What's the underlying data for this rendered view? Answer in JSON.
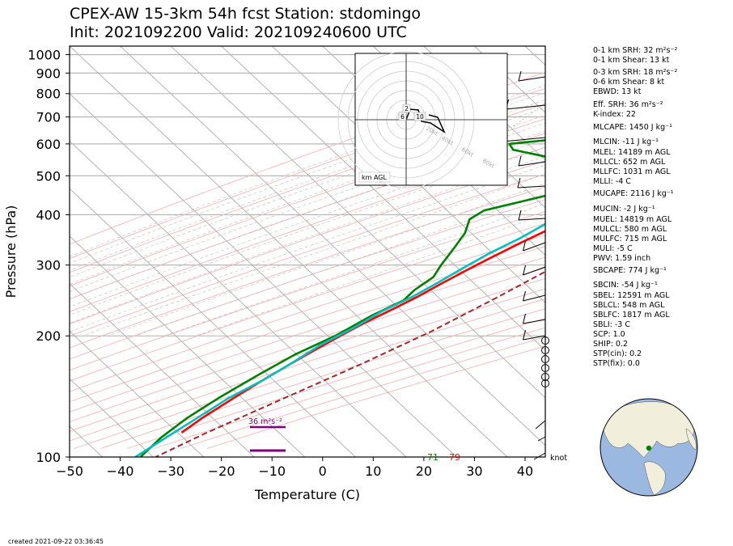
{
  "header": {
    "title_line1": "CPEX-AW 15-3km  54h fcst  Station: stdomingo",
    "title_line2": "Init: 2021092200  Valid: 202109240600 UTC"
  },
  "footer": {
    "created": "created 2021-09-22 03:36:45"
  },
  "chart_data": {
    "type": "skew-t",
    "xlabel": "Temperature (C)",
    "ylabel": "Pressure (hPa)",
    "xlim": [
      -50,
      44
    ],
    "ylim": [
      1050,
      100
    ],
    "y_scale": "log",
    "x_ticks": [
      -50,
      -40,
      -30,
      -20,
      -10,
      0,
      10,
      20,
      30,
      40
    ],
    "y_ticks": [
      100,
      200,
      300,
      400,
      500,
      600,
      700,
      800,
      900,
      1000
    ],
    "grid": true,
    "series": [
      {
        "key": "temperature",
        "color": "#ff0000",
        "points": [
          [
            27,
            1000
          ],
          [
            25,
            960
          ],
          [
            23,
            920
          ],
          [
            22.5,
            880
          ],
          [
            21,
            830
          ],
          [
            19,
            780
          ],
          [
            17.5,
            730
          ],
          [
            17,
            700
          ],
          [
            15.5,
            660
          ],
          [
            14,
            630
          ],
          [
            13,
            600
          ],
          [
            11,
            560
          ],
          [
            9,
            520
          ],
          [
            6,
            490
          ],
          [
            4,
            460
          ],
          [
            3,
            430
          ],
          [
            0,
            400
          ],
          [
            -3,
            370
          ],
          [
            -6,
            340
          ],
          [
            -9,
            310
          ],
          [
            -11,
            290
          ],
          [
            -13,
            270
          ],
          [
            -15,
            250
          ],
          [
            -17,
            235
          ],
          [
            -20,
            215
          ],
          [
            -22,
            200
          ],
          [
            -24,
            185
          ],
          [
            -26,
            170
          ],
          [
            -28,
            155
          ],
          [
            -30,
            140
          ],
          [
            -32,
            125
          ],
          [
            -33,
            115
          ]
        ]
      },
      {
        "key": "dewpoint",
        "color": "#008000",
        "points": [
          [
            22.5,
            1000
          ],
          [
            23,
            990
          ],
          [
            23.5,
            970
          ],
          [
            22,
            930
          ],
          [
            20,
            900
          ],
          [
            17,
            860
          ],
          [
            14,
            820
          ],
          [
            10,
            780
          ],
          [
            8,
            740
          ],
          [
            -20,
            670
          ],
          [
            -9,
            640
          ],
          [
            -29,
            600
          ],
          [
            -27,
            580
          ],
          [
            -1,
            510
          ],
          [
            -3,
            480
          ],
          [
            -20,
            410
          ],
          [
            -21,
            390
          ],
          [
            -19,
            360
          ],
          [
            -18,
            330
          ],
          [
            -17,
            300
          ],
          [
            -16,
            280
          ],
          [
            -17,
            260
          ],
          [
            -17,
            245
          ],
          [
            -20,
            225
          ],
          [
            -23,
            200
          ],
          [
            -27,
            180
          ],
          [
            -30,
            160
          ],
          [
            -33,
            140
          ],
          [
            -35,
            125
          ],
          [
            -36,
            112
          ],
          [
            -36,
            100
          ]
        ]
      },
      {
        "key": "wetbulb",
        "color": "#00c0c0",
        "points": [
          [
            24,
            1000
          ],
          [
            24,
            980
          ],
          [
            23.5,
            960
          ],
          [
            22,
            930
          ],
          [
            19,
            890
          ],
          [
            17,
            850
          ],
          [
            15,
            820
          ],
          [
            13,
            790
          ],
          [
            11,
            760
          ],
          [
            9,
            730
          ],
          [
            6,
            700
          ],
          [
            6,
            680
          ],
          [
            5,
            650
          ],
          [
            4,
            620
          ],
          [
            4,
            600
          ],
          [
            5,
            570
          ],
          [
            7,
            540
          ],
          [
            4,
            500
          ],
          [
            2,
            470
          ],
          [
            0,
            450
          ],
          [
            -3,
            410
          ],
          [
            -5,
            380
          ],
          [
            -7,
            350
          ],
          [
            -10,
            320
          ],
          [
            -12,
            295
          ],
          [
            -14,
            270
          ],
          [
            -16,
            250
          ],
          [
            -19,
            230
          ],
          [
            -21,
            210
          ],
          [
            -24,
            190
          ],
          [
            -26,
            170
          ],
          [
            -28,
            155
          ],
          [
            -31,
            140
          ],
          [
            -33,
            125
          ],
          [
            -35,
            112
          ],
          [
            -37,
            100
          ]
        ]
      },
      {
        "key": "parcel",
        "color": "#a0282a",
        "dashed": true,
        "points": [
          [
            28.5,
            950
          ],
          [
            26,
            880
          ],
          [
            24,
            800
          ],
          [
            22,
            700
          ],
          [
            20,
            600
          ],
          [
            17,
            500
          ],
          [
            14,
            430
          ],
          [
            10,
            360
          ],
          [
            6,
            300
          ],
          [
            1,
            250
          ],
          [
            -5,
            205
          ],
          [
            -12,
            170
          ],
          [
            -20,
            140
          ],
          [
            -28,
            115
          ],
          [
            -33,
            100
          ]
        ]
      }
    ],
    "surface_labels": [
      {
        "text": "71",
        "color": "#008000",
        "x": 21.5
      },
      {
        "text": "79",
        "color": "#ff0000",
        "x": 27
      }
    ],
    "srh_marker": {
      "text": "36 m²s⁻²",
      "color": "#800080",
      "pressure": 880
    },
    "hodograph": {
      "label": "km AGL",
      "ring_labels": [
        "20kt",
        "40kt",
        "60kt",
        "80kt"
      ],
      "height_labels": [
        "2",
        "6",
        "10"
      ]
    },
    "barbs_unit": "knot"
  },
  "indices": [
    "0-1 km SRH: 32 m²s⁻²",
    "0-1 km Shear: 13 kt",
    "0-3 km SRH: 18 m²s⁻²",
    "0-6 km Shear: 8 kt",
    "EBWD: 13 kt",
    "Eff. SRH: 36 m²s⁻²",
    "K-index: 22",
    "MLCAPE: 1450 J kg⁻¹",
    "MLCIN: -11 J kg⁻¹",
    "MLEL: 14189 m AGL",
    "MLLCL: 652 m AGL",
    "MLLFC: 1031 m AGL",
    "MLLI: -4 C",
    "MUCAPE: 2116 J kg⁻¹",
    "MUCIN: -2 J kg⁻¹",
    "MUEL: 14819 m AGL",
    "MULCL: 580 m AGL",
    "MULFC: 715 m AGL",
    "MULI: -5 C",
    "PWV: 1.59 inch",
    "SBCAPE: 774 J kg⁻¹",
    "SBCIN: -54 J kg⁻¹",
    "SBEL: 12591 m AGL",
    "SBLCL: 548 m AGL",
    "SBLFC: 1817 m AGL",
    "SBLI: -3 C",
    "SCP: 1.0",
    "SHIP: 0.2",
    "STP(cin): 0.2",
    "STP(fix): 0.0"
  ]
}
